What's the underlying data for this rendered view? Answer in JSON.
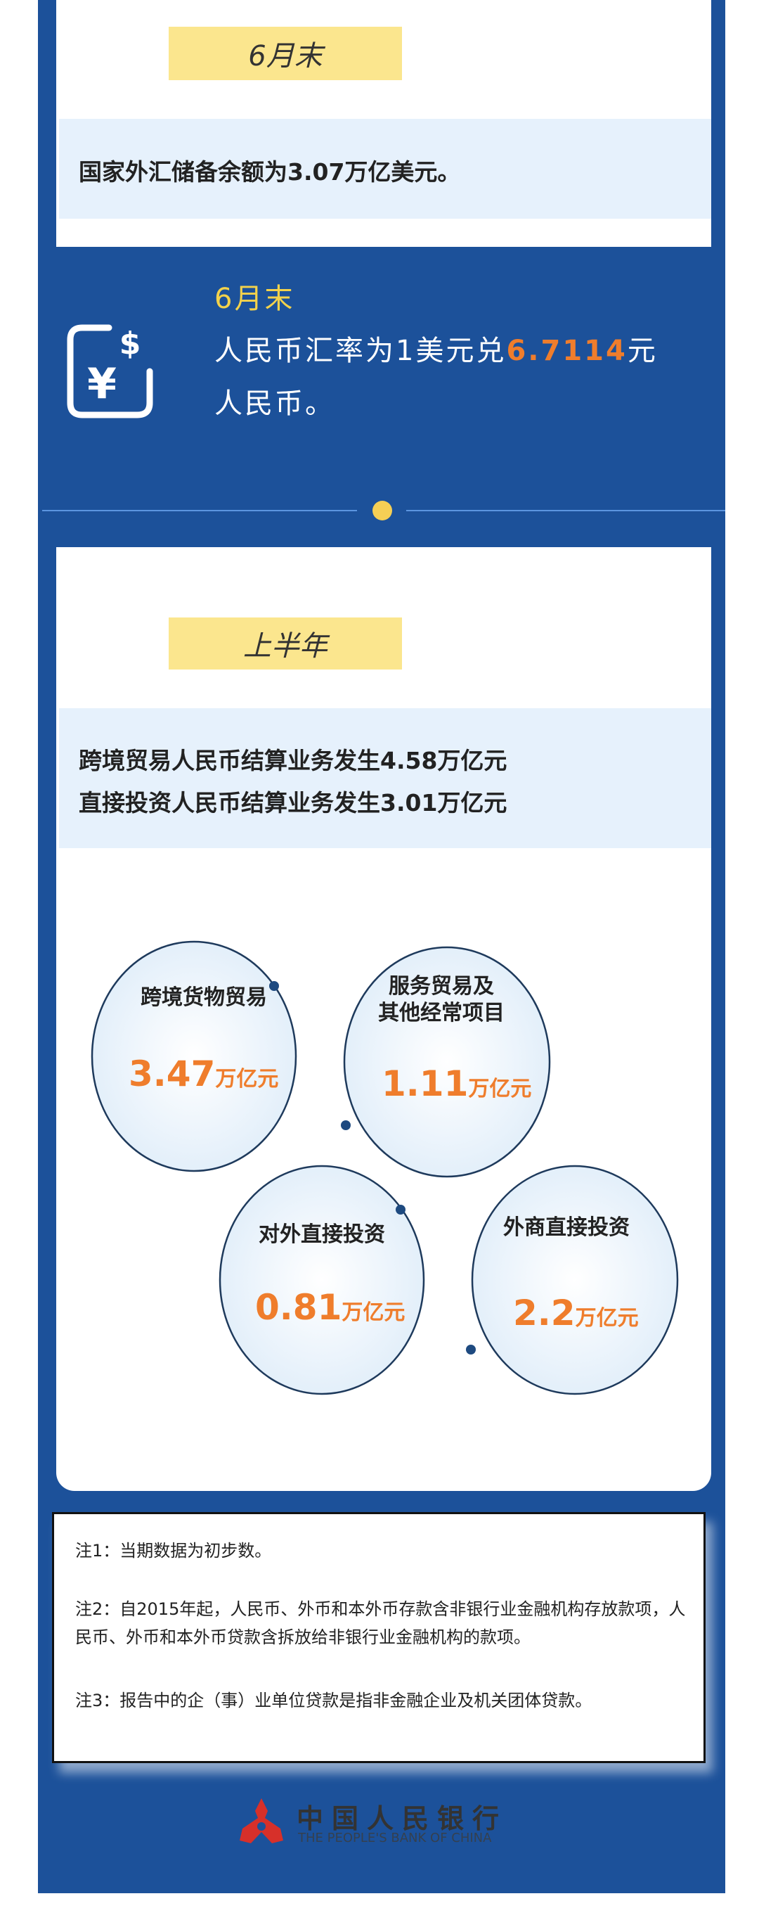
{
  "section1": {
    "tag": "6月末",
    "text": "国家外汇储备余额为3.07万亿美元。"
  },
  "section2": {
    "tag": "6月末",
    "text_before": "人民币汇率为1美元兑",
    "rate": "6.7114",
    "text_after": "元",
    "line2": "人民币。",
    "icon": "yuan-dollar-exchange-icon"
  },
  "section3": {
    "tag": "上半年",
    "line1": "跨境贸易人民币结算业务发生4.58万亿元",
    "line2": "直接投资人民币结算业务发生3.01万亿元",
    "circles": [
      {
        "label": "跨境货物贸易",
        "value": "3.47",
        "unit": "万亿元"
      },
      {
        "label": "服务贸易及\n其他经常项目",
        "value": "1.11",
        "unit": "万亿元"
      },
      {
        "label": "对外直接投资",
        "value": "0.81",
        "unit": "万亿元"
      },
      {
        "label": "外商直接投资",
        "value": "2.2",
        "unit": "万亿元"
      }
    ]
  },
  "notes": [
    "注1：当期数据为初步数。",
    "注2：自2015年起，人民币、外币和本外币存款含非银行业金融机构存放款项，人民币、外币和本外币贷款含拆放给非银行业金融机构的款项。",
    "注3：报告中的企（事）业单位贷款是指非金融企业及机关团体贷款。"
  ],
  "logo": {
    "cn": "中国人民银行",
    "en": "THE PEOPLE'S BANK OF CHINA"
  },
  "colors": {
    "frame": "#1c519a",
    "highlight": "#ef7d2c",
    "tag": "#fbe68e",
    "band": "#e6f1fc"
  }
}
